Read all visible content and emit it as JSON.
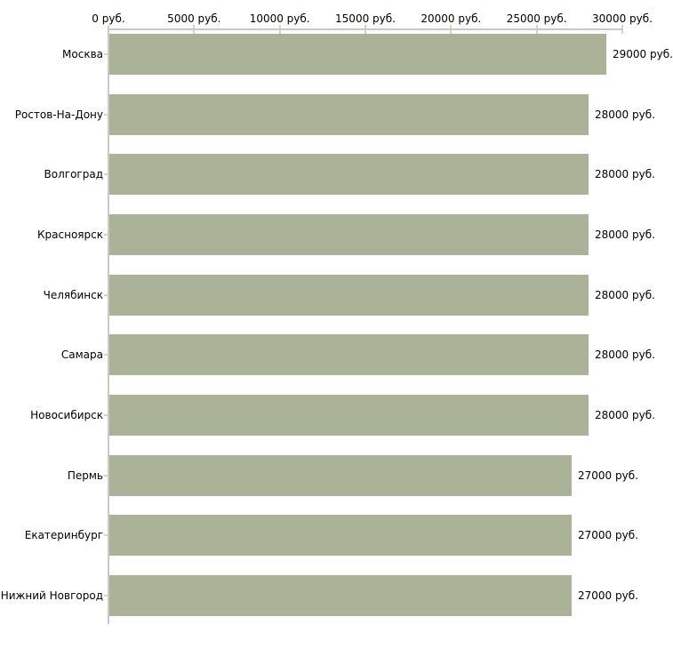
{
  "chart_data": {
    "type": "bar",
    "orientation": "horizontal",
    "title": "",
    "categories": [
      "Москва",
      "Ростов-На-Дону",
      "Волгоград",
      "Красноярск",
      "Челябинск",
      "Самара",
      "Новосибирск",
      "Пермь",
      "Екатеринбург",
      "Нижний Новгород"
    ],
    "values": [
      29000,
      28000,
      28000,
      28000,
      28000,
      28000,
      28000,
      27000,
      27000,
      27000
    ],
    "value_labels": [
      "29000 руб.",
      "28000 руб.",
      "28000 руб.",
      "28000 руб.",
      "28000 руб.",
      "28000 руб.",
      "28000 руб.",
      "27000 руб.",
      "27000 руб.",
      "27000 руб."
    ],
    "xlabel": "",
    "ylabel": "",
    "x_axis": {
      "position": "top",
      "min": 0,
      "max": 30000,
      "ticks": [
        0,
        5000,
        10000,
        15000,
        20000,
        25000,
        30000
      ],
      "tick_labels": [
        "0 руб.",
        "5000 руб.",
        "10000 руб.",
        "15000 руб.",
        "20000 руб.",
        "25000 руб.",
        "30000 руб."
      ]
    },
    "legend": false,
    "grid": false,
    "colors": {
      "bar_fill": "#aab397",
      "axis_line": "#c9c9c9",
      "tick_mark": "#d8d8b4",
      "text": "#000000",
      "background": "#ffffff"
    }
  }
}
